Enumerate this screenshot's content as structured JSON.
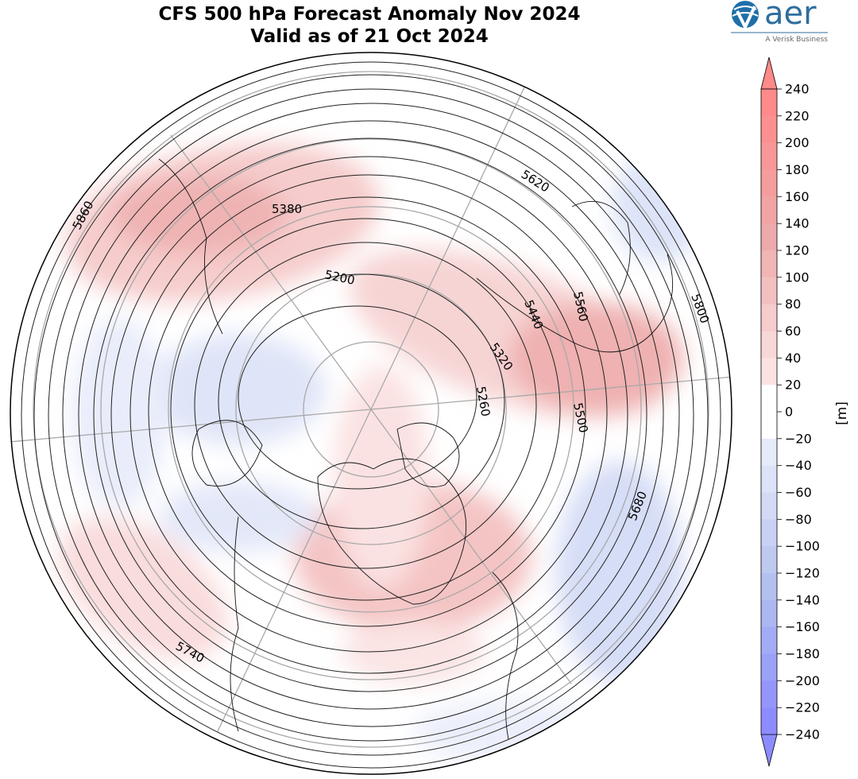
{
  "title": {
    "line1": "CFS 500 hPa Forecast Anomaly Nov 2024",
    "line2": "Valid as of 21 Oct 2024"
  },
  "logo": {
    "name": "aer",
    "tagline": "A Verisk Business"
  },
  "colorbar": {
    "unit": "[m]",
    "ticks": [
      "240",
      "220",
      "200",
      "180",
      "160",
      "140",
      "120",
      "100",
      "80",
      "60",
      "40",
      "20",
      "0",
      "−20",
      "−40",
      "−60",
      "−80",
      "−100",
      "−120",
      "−140",
      "−160",
      "−180",
      "−200",
      "−220",
      "−240"
    ],
    "colors": {
      "red_strong": "#ff8a8a",
      "red_mid": "#eeaaaa",
      "red_light": "#fbe2e2",
      "white": "#ffffff",
      "blue_light": "#e6ebfa",
      "blue_mid": "#b4c0ee",
      "blue_strong": "#8c8cff"
    }
  },
  "map": {
    "projection": "north polar stereographic",
    "contour_labels": [
      "5860",
      "5380",
      "5200",
      "5620",
      "5440",
      "5560",
      "5320",
      "5260",
      "5800",
      "5500",
      "5680",
      "5740"
    ]
  }
}
